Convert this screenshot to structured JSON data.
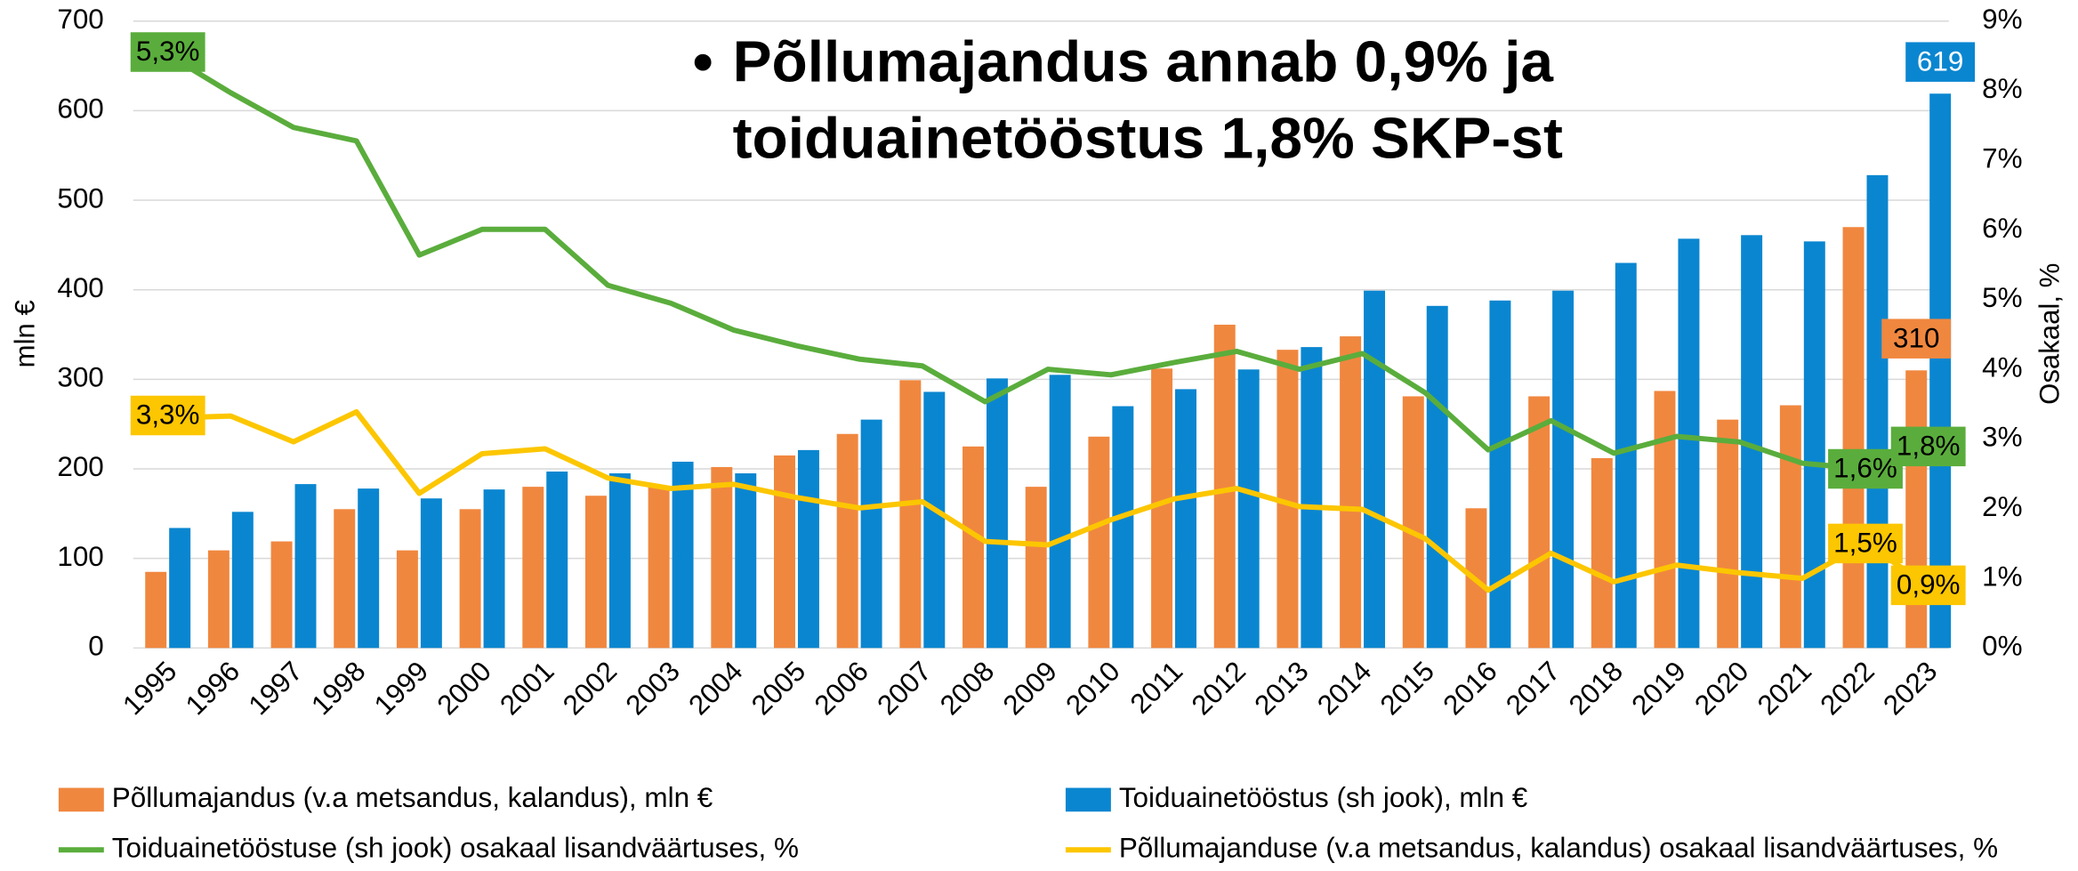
{
  "chart_data": {
    "type": "bar_line",
    "title": [
      "Põllumajandus annab 0,9% ja",
      "toiduainetööstus 1,8% SKP-st"
    ],
    "y_label": "mln €",
    "y2_label": "Osakaal, %",
    "categories": [
      "1995",
      "1996",
      "1997",
      "1998",
      "1999",
      "2000",
      "2001",
      "2002",
      "2003",
      "2004",
      "2005",
      "2006",
      "2007",
      "2008",
      "2009",
      "2010",
      "2011",
      "2012",
      "2013",
      "2014",
      "2015",
      "2016",
      "2017",
      "2018",
      "2019",
      "2020",
      "2021",
      "2022",
      "2023"
    ],
    "ylim": [
      0,
      700
    ],
    "yticks": [
      0,
      100,
      200,
      300,
      400,
      500,
      600,
      700
    ],
    "y2lim": [
      0,
      9
    ],
    "y2ticks": [
      {
        "value": 0,
        "label": "0%"
      },
      {
        "value": 1,
        "label": "1%"
      },
      {
        "value": 2,
        "label": "2%"
      },
      {
        "value": 3,
        "label": "3%"
      },
      {
        "value": 4,
        "label": "4%"
      },
      {
        "value": 5,
        "label": "5%"
      },
      {
        "value": 6,
        "label": "6%"
      },
      {
        "value": 7,
        "label": "7%"
      },
      {
        "value": 8,
        "label": "8%"
      },
      {
        "value": 9,
        "label": "9%"
      }
    ],
    "y3lim": [
      0,
      5.6
    ],
    "grid": true,
    "series": [
      {
        "name": "Põllumajandus (v.a metsandus, kalandus), mln €",
        "kind": "bar",
        "color": "#f0873f",
        "values": [
          85,
          109,
          119,
          155,
          109,
          155,
          180,
          170,
          181,
          202,
          215,
          239,
          299,
          225,
          180,
          236,
          312,
          361,
          333,
          348,
          281,
          156,
          281,
          212,
          287,
          255,
          271,
          470,
          310
        ],
        "value_labels": [
          null,
          null,
          null,
          null,
          null,
          null,
          null,
          null,
          null,
          null,
          null,
          null,
          null,
          null,
          null,
          null,
          null,
          null,
          null,
          null,
          null,
          null,
          null,
          null,
          null,
          null,
          null,
          null,
          "310"
        ]
      },
      {
        "name": "Toiduainetööstus (sh jook), mln €",
        "kind": "bar",
        "color": "#0a86d0",
        "values": [
          134,
          152,
          183,
          178,
          167,
          177,
          197,
          195,
          208,
          195,
          221,
          255,
          286,
          301,
          305,
          270,
          289,
          311,
          336,
          399,
          382,
          388,
          399,
          430,
          457,
          461,
          454,
          528,
          619
        ],
        "value_labels": [
          null,
          null,
          null,
          null,
          null,
          null,
          null,
          null,
          null,
          null,
          null,
          null,
          null,
          null,
          null,
          null,
          null,
          null,
          null,
          null,
          null,
          null,
          null,
          null,
          null,
          null,
          null,
          null,
          "619"
        ]
      },
      {
        "name": "Toiduainetööstuse (sh jook) osakaal lisandväärtuses, %",
        "kind": "line",
        "axis": "y3",
        "color": "#5aad3c",
        "values": [
          5.3,
          4.96,
          4.65,
          4.53,
          3.51,
          3.74,
          3.74,
          3.24,
          3.08,
          2.84,
          2.7,
          2.58,
          2.52,
          2.2,
          2.49,
          2.44,
          2.55,
          2.65,
          2.49,
          2.63,
          2.28,
          1.77,
          2.03,
          1.74,
          1.89,
          1.84,
          1.65,
          1.6,
          1.8
        ],
        "value_labels": [
          "5,3%",
          null,
          null,
          null,
          null,
          null,
          null,
          null,
          null,
          null,
          null,
          null,
          null,
          null,
          null,
          null,
          null,
          null,
          null,
          null,
          null,
          null,
          null,
          null,
          null,
          null,
          null,
          "1,6%",
          "1,8%"
        ]
      },
      {
        "name": "Põllumajanduse (v.a metsandus, kalandus) osakaal lisandväärtuses, %",
        "kind": "line",
        "axis": "y2",
        "color": "#fcc600",
        "values": [
          3.3,
          3.33,
          2.96,
          3.39,
          2.22,
          2.79,
          2.86,
          2.44,
          2.29,
          2.35,
          2.16,
          2.01,
          2.1,
          1.53,
          1.48,
          1.84,
          2.14,
          2.29,
          2.03,
          1.99,
          1.57,
          0.83,
          1.36,
          0.95,
          1.19,
          1.08,
          1.0,
          1.5,
          0.9
        ],
        "value_labels": [
          "3,3%",
          null,
          null,
          null,
          null,
          null,
          null,
          null,
          null,
          null,
          null,
          null,
          null,
          null,
          null,
          null,
          null,
          null,
          null,
          null,
          null,
          null,
          null,
          null,
          null,
          null,
          null,
          "1,5%",
          "0,9%"
        ]
      }
    ]
  }
}
